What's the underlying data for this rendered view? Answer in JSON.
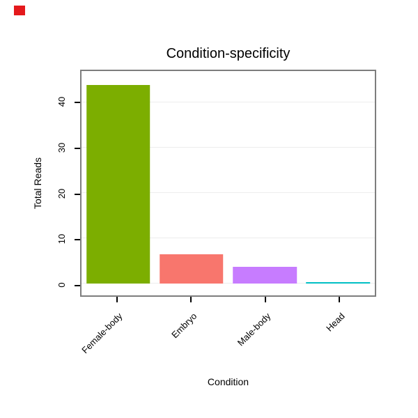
{
  "marker": {
    "color": "#e4191c"
  },
  "chart_data": {
    "type": "bar",
    "title": "Condition-specificity",
    "xlabel": "Condition",
    "ylabel": "Total Reads",
    "categories": [
      "Female-body",
      "Embryo",
      "Male-body",
      "Head"
    ],
    "values": [
      44,
      6.5,
      3.8,
      0.4
    ],
    "bar_colors": [
      "#7CAE00",
      "#F8766D",
      "#C77CFF",
      "#00BFC4"
    ],
    "yticks": [
      0,
      10,
      20,
      30,
      40
    ],
    "ylim": [
      0,
      47
    ],
    "grid": true,
    "legend": false
  }
}
